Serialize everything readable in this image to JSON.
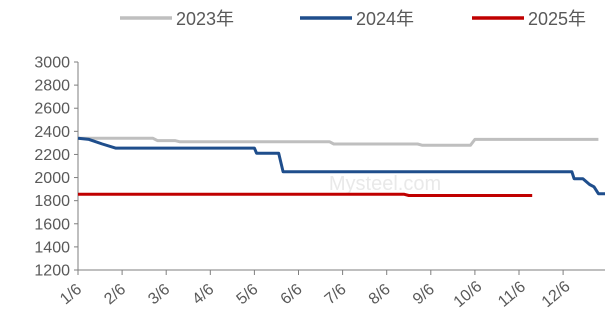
{
  "chart_data": {
    "type": "line",
    "title": "",
    "xlabel": "",
    "ylabel": "",
    "ylim": [
      1200,
      3000
    ],
    "yticks": [
      1200,
      1400,
      1600,
      1800,
      2000,
      2200,
      2400,
      2600,
      2800,
      3000
    ],
    "x_unit": "day_of_year_fraction_of_12_months",
    "xlim": [
      1,
      12.8
    ],
    "xtick_positions": [
      1,
      2,
      3,
      4,
      5,
      6,
      7,
      8,
      9,
      10,
      11,
      12
    ],
    "xtick_labels": [
      "1/6",
      "2/6",
      "3/6",
      "4/6",
      "5/6",
      "6/6",
      "7/6",
      "8/6",
      "9/6",
      "10/6",
      "11/6",
      "12/6"
    ],
    "grid": false,
    "legend_position": "top",
    "watermark": "Mysteel.com",
    "series": [
      {
        "name": "2023年",
        "color": "#bfbfbf",
        "points": [
          [
            1.0,
            2340
          ],
          [
            2.7,
            2340
          ],
          [
            2.8,
            2320
          ],
          [
            3.2,
            2320
          ],
          [
            3.3,
            2310
          ],
          [
            6.7,
            2310
          ],
          [
            6.8,
            2290
          ],
          [
            8.7,
            2290
          ],
          [
            8.8,
            2280
          ],
          [
            9.9,
            2280
          ],
          [
            10.0,
            2330
          ],
          [
            12.8,
            2330
          ]
        ]
      },
      {
        "name": "2024年",
        "color": "#1f4e8c",
        "points": [
          [
            1.0,
            2340
          ],
          [
            1.25,
            2330
          ],
          [
            1.55,
            2290
          ],
          [
            1.85,
            2255
          ],
          [
            5.0,
            2255
          ],
          [
            5.05,
            2210
          ],
          [
            5.55,
            2210
          ],
          [
            5.65,
            2050
          ],
          [
            12.2,
            2050
          ],
          [
            12.25,
            1990
          ],
          [
            12.45,
            1990
          ],
          [
            12.6,
            1940
          ],
          [
            12.7,
            1920
          ],
          [
            12.8,
            1860
          ],
          [
            12.95,
            1860
          ]
        ]
      },
      {
        "name": "2025年",
        "color": "#c00000",
        "points": [
          [
            1.0,
            1855
          ],
          [
            8.4,
            1855
          ],
          [
            8.5,
            1845
          ],
          [
            11.3,
            1845
          ]
        ]
      }
    ]
  }
}
